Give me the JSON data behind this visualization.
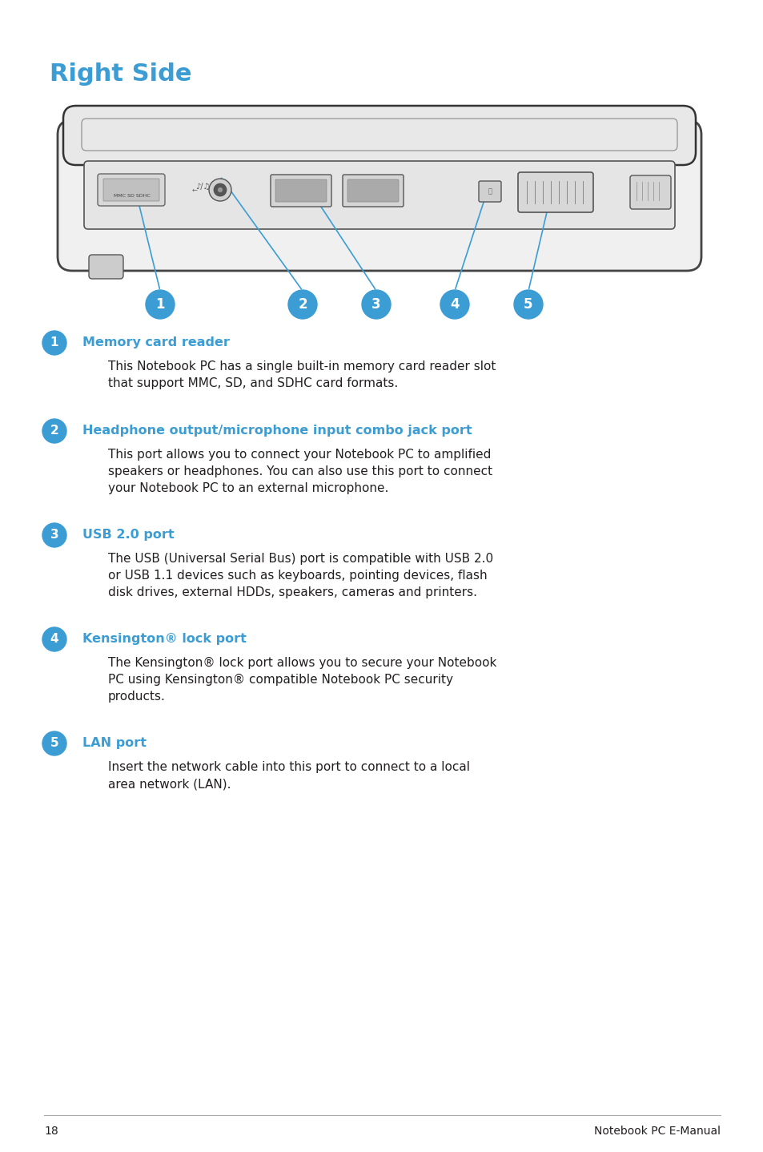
{
  "title": "Right Side",
  "title_color": "#3b9dd4",
  "title_fontsize": 22,
  "bg_color": "#ffffff",
  "accent_color": "#3b9dd4",
  "text_color": "#231f20",
  "footer_line_color": "#aaaaaa",
  "page_number": "18",
  "footer_right": "Notebook PC E-Manual",
  "items": [
    {
      "num": "1",
      "heading": "Memory card reader",
      "body_lines": [
        "This Notebook PC has a single built-in memory card reader slot",
        "that support MMC, SD, and SDHC card formats."
      ]
    },
    {
      "num": "2",
      "heading": "Headphone output/microphone input combo jack port",
      "body_lines": [
        "This port allows you to connect your Notebook PC to amplified",
        "speakers or headphones. You can also use this port to connect",
        "your Notebook PC to an external microphone."
      ]
    },
    {
      "num": "3",
      "heading": "USB 2.0 port",
      "body_lines": [
        "The USB (Universal Serial Bus) port is compatible with USB 2.0",
        "or USB 1.1 devices such as keyboards, pointing devices, flash",
        "disk drives, external HDDs, speakers, cameras and printers."
      ]
    },
    {
      "num": "4",
      "heading": "Kensington® lock port",
      "body_lines": [
        "The Kensington® lock port allows you to secure your Notebook",
        "PC using Kensington® compatible Notebook PC security",
        "products."
      ]
    },
    {
      "num": "5",
      "heading": "LAN port",
      "body_lines": [
        "Insert the network cable into this port to connect to a local",
        "area network (LAN)."
      ]
    }
  ]
}
